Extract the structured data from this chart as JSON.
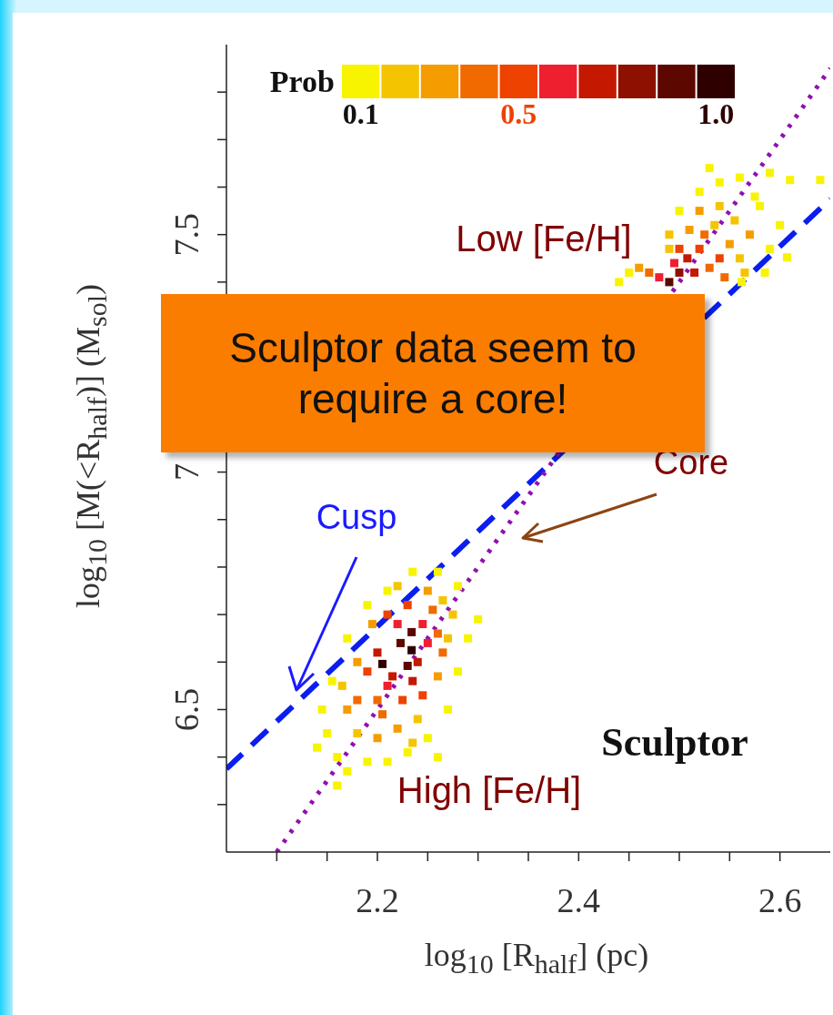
{
  "chart_data": {
    "type": "scatter",
    "xlabel": "log$_{10}$ [R$_{half}$] (pc)",
    "ylabel": "log$_{10}$ [M(<R$_{half}$)] (M$_{sol}$)",
    "legend_title": "Prob",
    "legend": "top",
    "xlim": [
      2.05,
      2.65
    ],
    "ylim": [
      6.2,
      7.9
    ],
    "xticks": [
      {
        "value": 2.1,
        "label": null
      },
      {
        "value": 2.15,
        "label": null
      },
      2.2,
      {
        "value": 2.25,
        "label": null
      },
      {
        "value": 2.3,
        "label": null
      },
      {
        "value": 2.35,
        "label": null
      },
      2.4,
      {
        "value": 2.45,
        "label": null
      },
      {
        "value": 2.5,
        "label": null
      },
      {
        "value": 2.55,
        "label": null
      },
      2.6
    ],
    "yticks": [
      {
        "value": 6.3,
        "label": null
      },
      {
        "value": 6.4,
        "label": null
      },
      6.5,
      {
        "value": 6.6,
        "label": null
      },
      {
        "value": 6.7,
        "label": null
      },
      {
        "value": 6.8,
        "label": null
      },
      {
        "value": 6.9,
        "label": null
      },
      7,
      {
        "value": 7.1,
        "label": null
      },
      {
        "value": 7.2,
        "label": null
      },
      {
        "value": 7.3,
        "label": null
      },
      {
        "value": 7.4,
        "label": null
      },
      7.5,
      {
        "value": 7.6,
        "label": null
      },
      {
        "value": 7.7,
        "label": null
      },
      {
        "value": 7.8,
        "label": null
      }
    ],
    "series": [
      {
        "name": "0.1",
        "color": "#f8f400",
        "marker": "square",
        "x": [
          2.15,
          2.16,
          2.17,
          2.19,
          2.21,
          2.23,
          2.25,
          2.27,
          2.28,
          2.29,
          2.3,
          2.28,
          2.26,
          2.235,
          2.21,
          2.19,
          2.17,
          2.155,
          2.145,
          2.16,
          2.14,
          2.26,
          2.44,
          2.45,
          2.5,
          2.52,
          2.54,
          2.56,
          2.59,
          2.61,
          2.64,
          2.58,
          2.6,
          2.607,
          2.585,
          2.562,
          2.59,
          2.575,
          2.53
        ],
        "values": [
          6.45,
          6.4,
          6.37,
          6.39,
          6.39,
          6.41,
          6.44,
          6.5,
          6.58,
          6.65,
          6.69,
          6.76,
          6.79,
          6.79,
          6.75,
          6.72,
          6.65,
          6.56,
          6.5,
          6.34,
          6.42,
          6.4,
          7.4,
          7.42,
          7.55,
          7.59,
          7.61,
          7.62,
          7.63,
          7.615,
          7.615,
          7.56,
          7.52,
          7.452,
          7.42,
          7.4,
          7.47,
          7.58,
          7.64
        ]
      },
      {
        "color": "#f5c400",
        "marker": "square",
        "x": [
          2.18,
          2.24,
          2.27,
          2.265,
          2.22,
          2.165,
          2.235,
          2.275,
          2.49,
          2.535,
          2.56,
          2.555,
          2.54,
          2.565,
          2.49
        ],
        "values": [
          6.45,
          6.48,
          6.65,
          6.73,
          6.76,
          6.55,
          6.43,
          6.7,
          7.47,
          7.52,
          7.45,
          7.53,
          7.56,
          7.42,
          7.5
        ]
      },
      {
        "color": "#f59d00",
        "marker": "square",
        "x": [
          2.17,
          2.2,
          2.22,
          2.26,
          2.25,
          2.195,
          2.18,
          2.46,
          2.51,
          2.55,
          2.57,
          2.52
        ],
        "values": [
          6.5,
          6.44,
          6.46,
          6.57,
          6.75,
          6.68,
          6.6,
          7.43,
          7.51,
          7.48,
          7.5,
          7.55
        ]
      },
      {
        "color": "#f06a00",
        "marker": "square",
        "x": [
          2.2,
          2.26,
          2.255,
          2.18,
          2.205,
          2.265,
          2.53,
          2.47,
          2.525,
          2.545
        ],
        "values": [
          6.52,
          6.66,
          6.71,
          6.52,
          6.49,
          6.62,
          7.43,
          7.42,
          7.5,
          7.41
        ]
      },
      {
        "name": "0.5",
        "color": "#ee4200",
        "marker": "square",
        "x": [
          2.19,
          2.225,
          2.23,
          2.245,
          2.21,
          2.52,
          2.54,
          2.5
        ],
        "values": [
          6.58,
          6.52,
          6.72,
          6.53,
          6.7,
          7.47,
          7.45,
          7.47
        ]
      },
      {
        "color": "#ee2030",
        "marker": "square",
        "x": [
          2.22,
          2.245,
          2.21,
          2.25,
          2.495,
          2.48
        ],
        "values": [
          6.68,
          6.68,
          6.55,
          6.64,
          7.44,
          7.41
        ]
      },
      {
        "color": "#c41800",
        "marker": "square",
        "x": [
          2.215,
          2.24,
          2.2,
          2.235,
          2.508,
          2.515
        ],
        "values": [
          6.57,
          6.6,
          6.62,
          6.56,
          7.45,
          7.42
        ]
      },
      {
        "color": "#8e1000",
        "marker": "square",
        "x": [
          2.5
        ],
        "values": [
          7.42
        ]
      },
      {
        "color": "#5c0800",
        "marker": "square",
        "x": [
          2.223,
          2.234,
          2.23,
          2.49
        ],
        "values": [
          6.64,
          6.663,
          6.592,
          7.4
        ]
      },
      {
        "name": "1.0",
        "color": "#2e0000",
        "marker": "square",
        "x": [
          2.205,
          2.234
        ],
        "values": [
          6.596,
          6.625
        ]
      },
      {
        "type": "line",
        "x": [
          2.05,
          2.65
        ],
        "values": [
          6.375,
          7.575
        ],
        "color": "#0a1ef0",
        "line_style": "dashed"
      },
      {
        "type": "line",
        "x": [
          2.1,
          2.65
        ],
        "values": [
          6.2,
          7.85
        ],
        "color": "#9010b0",
        "line_style": "dotted"
      }
    ],
    "annotations": [
      "Low [Fe/H]",
      "High [Fe/H]",
      "Cusp",
      "Core",
      "Sculptor",
      "Sculptor data seem to require a core!"
    ]
  }
}
